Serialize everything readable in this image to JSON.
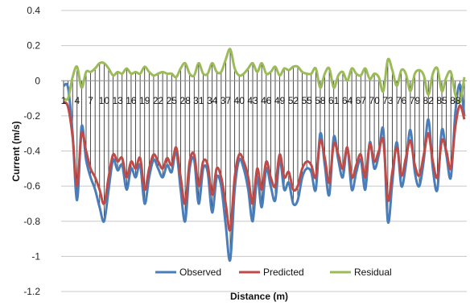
{
  "chart_data": {
    "type": "line",
    "xlabel": "Distance (m)",
    "ylabel": "Current (m/s)",
    "ylim": [
      -1.2,
      0.4
    ],
    "yticks": [
      0.4,
      0.2,
      0,
      -0.2,
      -0.4,
      -0.6,
      -0.8,
      -1,
      -1.2
    ],
    "x_tick_labels": [
      "1",
      "4",
      "7",
      "10",
      "13",
      "16",
      "19",
      "22",
      "25",
      "28",
      "31",
      "34",
      "37",
      "40",
      "43",
      "46",
      "49",
      "52",
      "55",
      "58",
      "61",
      "64",
      "67",
      "70",
      "73",
      "76",
      "79",
      "82",
      "85",
      "88"
    ],
    "grid": "horizontal",
    "legend_position": "bottom",
    "series": [
      {
        "name": "Observed",
        "color": "#4a7ebb",
        "values": [
          -0.03,
          -0.04,
          -0.3,
          -0.68,
          -0.26,
          -0.45,
          -0.55,
          -0.62,
          -0.72,
          -0.8,
          -0.62,
          -0.45,
          -0.51,
          -0.48,
          -0.62,
          -0.5,
          -0.55,
          -0.48,
          -0.7,
          -0.55,
          -0.45,
          -0.5,
          -0.55,
          -0.48,
          -0.52,
          -0.4,
          -0.62,
          -0.8,
          -0.5,
          -0.45,
          -0.7,
          -0.5,
          -0.52,
          -0.75,
          -0.55,
          -0.6,
          -0.82,
          -1.02,
          -0.62,
          -0.45,
          -0.5,
          -0.62,
          -0.8,
          -0.55,
          -0.72,
          -0.5,
          -0.6,
          -0.68,
          -0.45,
          -0.62,
          -0.58,
          -0.7,
          -0.68,
          -0.55,
          -0.5,
          -0.52,
          -0.62,
          -0.3,
          -0.48,
          -0.65,
          -0.32,
          -0.45,
          -0.55,
          -0.38,
          -0.62,
          -0.52,
          -0.45,
          -0.62,
          -0.35,
          -0.5,
          -0.42,
          -0.28,
          -0.8,
          -0.58,
          -0.35,
          -0.6,
          -0.48,
          -0.28,
          -0.52,
          -0.6,
          -0.45,
          -0.22,
          -0.5,
          -0.62,
          -0.28,
          -0.42,
          -0.55,
          -0.18,
          -0.02,
          -0.2
        ]
      },
      {
        "name": "Predicted",
        "color": "#be4b48",
        "values": [
          -0.12,
          -0.15,
          -0.32,
          -0.6,
          -0.3,
          -0.4,
          -0.5,
          -0.55,
          -0.62,
          -0.7,
          -0.55,
          -0.42,
          -0.46,
          -0.44,
          -0.55,
          -0.46,
          -0.5,
          -0.44,
          -0.62,
          -0.5,
          -0.42,
          -0.46,
          -0.5,
          -0.44,
          -0.48,
          -0.38,
          -0.55,
          -0.7,
          -0.46,
          -0.42,
          -0.6,
          -0.46,
          -0.48,
          -0.65,
          -0.5,
          -0.55,
          -0.7,
          -0.85,
          -0.55,
          -0.42,
          -0.46,
          -0.55,
          -0.7,
          -0.5,
          -0.62,
          -0.46,
          -0.55,
          -0.6,
          -0.42,
          -0.55,
          -0.52,
          -0.62,
          -0.6,
          -0.5,
          -0.46,
          -0.48,
          -0.55,
          -0.34,
          -0.44,
          -0.58,
          -0.36,
          -0.42,
          -0.5,
          -0.38,
          -0.55,
          -0.48,
          -0.42,
          -0.55,
          -0.36,
          -0.46,
          -0.4,
          -0.34,
          -0.68,
          -0.52,
          -0.38,
          -0.54,
          -0.44,
          -0.34,
          -0.48,
          -0.54,
          -0.42,
          -0.3,
          -0.46,
          -0.55,
          -0.34,
          -0.4,
          -0.5,
          -0.26,
          -0.14,
          -0.22
        ]
      },
      {
        "name": "Residual",
        "color": "#9bbb59",
        "values": [
          -0.1,
          -0.1,
          0.02,
          0.08,
          -0.04,
          0.05,
          0.05,
          0.07,
          0.1,
          0.1,
          0.07,
          0.03,
          0.05,
          0.04,
          0.07,
          0.04,
          0.05,
          0.04,
          0.08,
          0.05,
          0.03,
          0.04,
          0.05,
          0.04,
          0.04,
          0.02,
          0.07,
          0.1,
          0.04,
          0.03,
          0.1,
          0.04,
          0.04,
          0.1,
          0.05,
          0.05,
          0.12,
          0.18,
          0.07,
          0.03,
          0.04,
          0.07,
          0.1,
          0.05,
          0.1,
          0.04,
          0.05,
          0.08,
          0.03,
          0.07,
          0.06,
          0.08,
          0.08,
          0.05,
          0.04,
          0.04,
          0.07,
          -0.04,
          0.04,
          0.07,
          -0.04,
          0.03,
          0.05,
          0.0,
          0.07,
          0.04,
          0.03,
          0.07,
          0.01,
          0.04,
          0.02,
          -0.06,
          0.12,
          0.06,
          -0.03,
          0.06,
          0.04,
          -0.06,
          0.04,
          0.06,
          0.03,
          -0.08,
          0.04,
          0.07,
          -0.06,
          0.02,
          0.05,
          -0.08,
          -0.12,
          0.02
        ]
      }
    ]
  }
}
